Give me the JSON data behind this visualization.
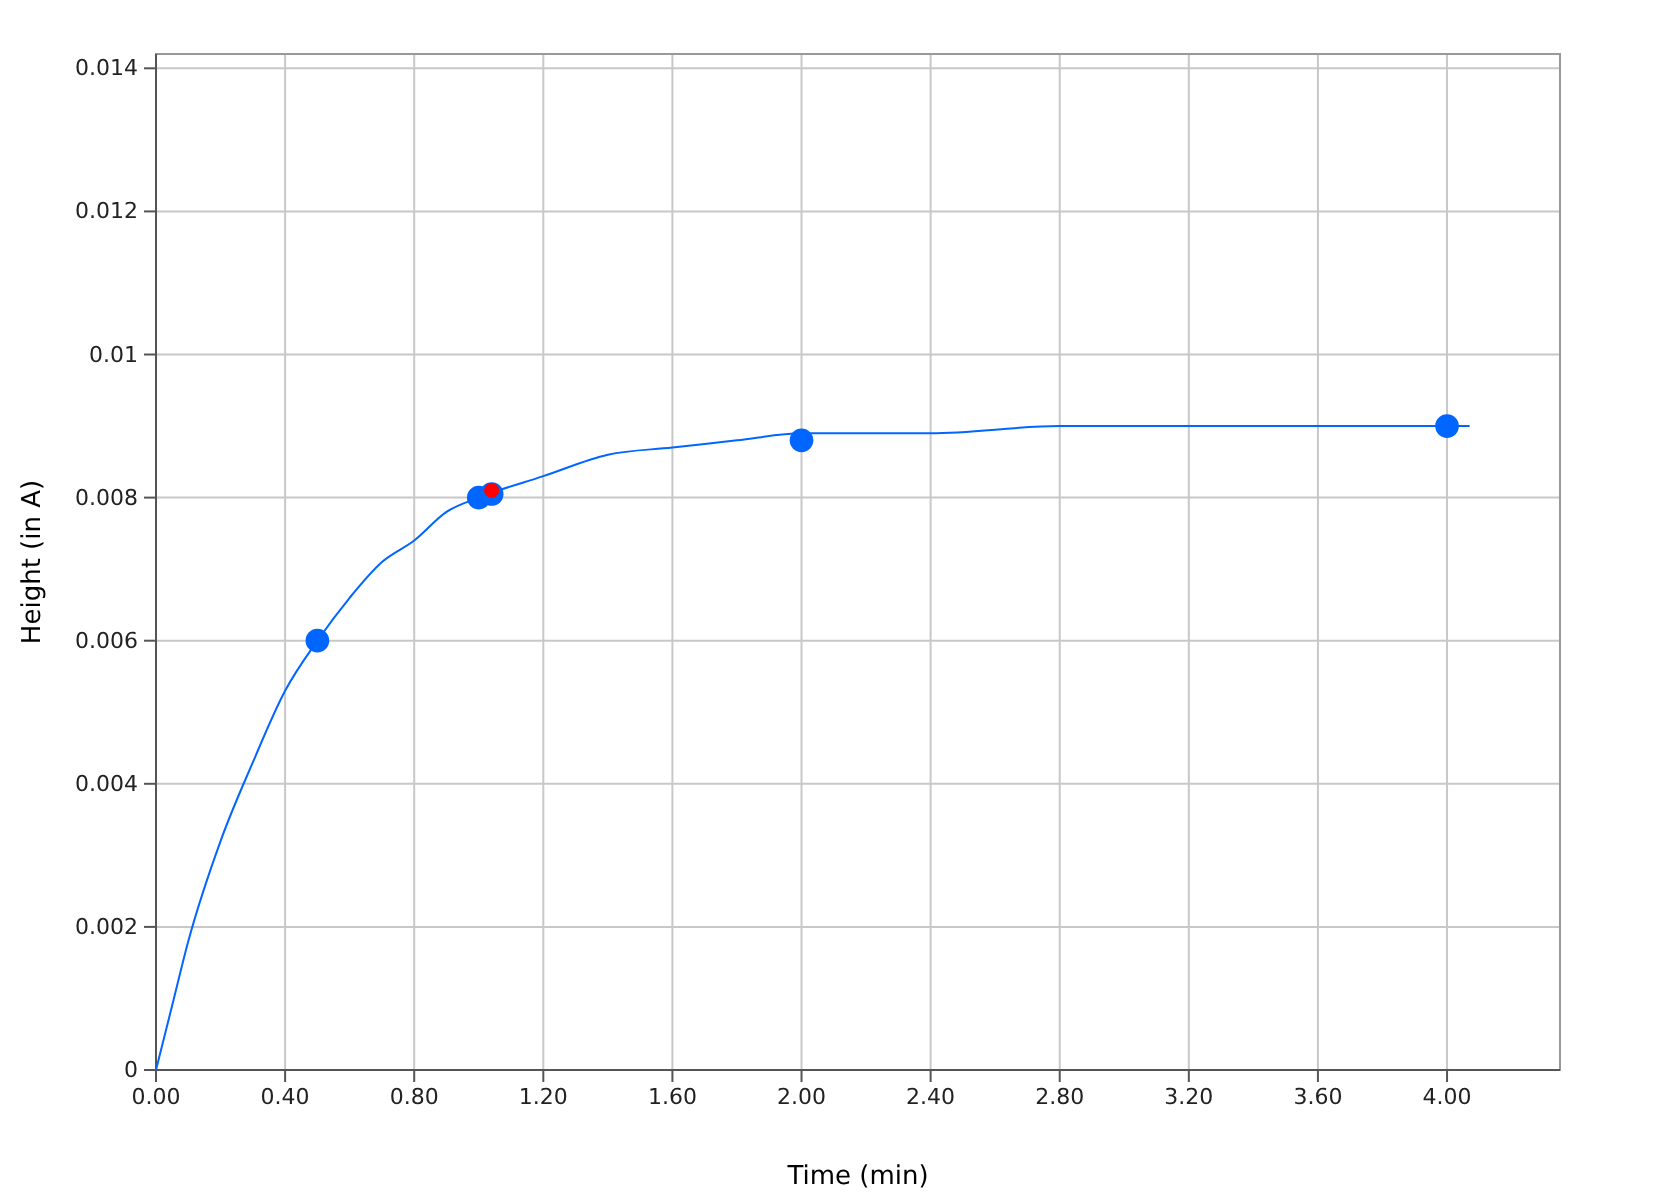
{
  "chart_data": {
    "type": "scatter",
    "xlabel": "Time (min)",
    "ylabel": "Height (in A)",
    "xlim": [
      0,
      4.35
    ],
    "ylim": [
      0,
      0.0142
    ],
    "xticks": [
      {
        "value": 0,
        "label": "0.00"
      },
      {
        "value": 0.4,
        "label": "0.40"
      },
      {
        "value": 0.8,
        "label": "0.80"
      },
      {
        "value": 1.2,
        "label": "1.20"
      },
      {
        "value": 1.6,
        "label": "1.60"
      },
      {
        "value": 2,
        "label": "2.00"
      },
      {
        "value": 2.4,
        "label": "2.40"
      },
      {
        "value": 2.8,
        "label": "2.80"
      },
      {
        "value": 3.2,
        "label": "3.20"
      },
      {
        "value": 3.6,
        "label": "3.60"
      },
      {
        "value": 4,
        "label": "4.00"
      }
    ],
    "yticks": [
      0,
      0.002,
      0.004,
      0.006,
      0.008,
      0.01,
      0.012,
      0.014
    ],
    "grid": true,
    "marker": "circle",
    "series": [
      {
        "type": "line",
        "color": "#0066ff",
        "marker": "none",
        "x": [
          0,
          0.05,
          0.1,
          0.2,
          0.3,
          0.4,
          0.5,
          0.6,
          0.7,
          0.8,
          0.9,
          1.0,
          1.2,
          1.4,
          1.6,
          1.8,
          2.0,
          2.4,
          2.8,
          3.2,
          3.6,
          4.07
        ],
        "values": [
          0,
          0.0009,
          0.0018,
          0.0032,
          0.0043,
          0.0053,
          0.006,
          0.0066,
          0.0071,
          0.0074,
          0.0078,
          0.008,
          0.0083,
          0.0086,
          0.0087,
          0.0088,
          0.0089,
          0.0089,
          0.009,
          0.009,
          0.009,
          0.009
        ]
      },
      {
        "color": "#0066ff",
        "x": [
          0.5,
          1.0,
          1.04,
          2.0,
          4.0
        ],
        "values": [
          0.006,
          0.008,
          0.00805,
          0.0088,
          0.009
        ]
      },
      {
        "color": "#ff0000",
        "x": [
          1.04
        ],
        "values": [
          0.0081
        ]
      }
    ]
  }
}
